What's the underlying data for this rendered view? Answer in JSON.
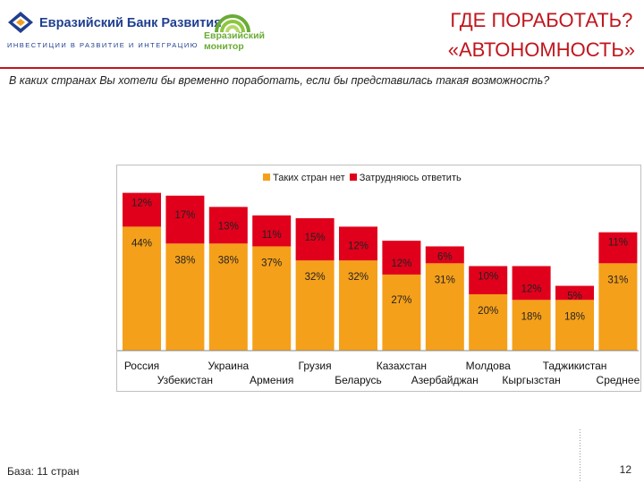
{
  "header": {
    "bank_name": "Евразийский Банк Развития",
    "bank_tagline": "ИНВЕСТИЦИИ В РАЗВИТИЕ И ИНТЕГРАЦИЮ",
    "monitor_line1": "Евразийский",
    "monitor_line2": "монитор",
    "title_line1": "ГДЕ ПОРАБОТАТЬ?",
    "title_line2": "«АВТОНОМНОСТЬ»"
  },
  "question": "В каких странах Вы хотели бы временно поработать, если бы представилась такая возможность?",
  "colors": {
    "accent": "#c0161d",
    "bar_orange": "#f5a01a",
    "bar_red": "#e0001b",
    "brand_blue": "#1f3f8f",
    "brand_green": "#6aab35"
  },
  "chart_data": {
    "type": "bar",
    "stacked": true,
    "categories": [
      "Россия",
      "Узбекистан",
      "Украина",
      "Армения",
      "Грузия",
      "Беларусь",
      "Казахстан",
      "Азербайджан",
      "Молдова",
      "Кыргызстан",
      "Таджикистан",
      "Среднее"
    ],
    "series": [
      {
        "name": "Таких стран нет",
        "color": "#f5a01a",
        "values": [
          44,
          38,
          38,
          37,
          32,
          32,
          27,
          31,
          20,
          18,
          18,
          31
        ]
      },
      {
        "name": "Затрудняюсь ответить",
        "color": "#e0001b",
        "values": [
          12,
          17,
          13,
          11,
          15,
          12,
          12,
          6,
          10,
          12,
          5,
          11
        ]
      }
    ],
    "value_labels": {
      "orange": [
        "44%",
        "38%",
        "38%",
        "37%",
        "32%",
        "32%",
        "27%",
        "31%",
        "20%",
        "18%",
        "18%",
        "31%"
      ],
      "red": [
        "12%",
        "17%",
        "13%",
        "11%",
        "15%",
        "12%",
        "12%",
        "6%",
        "10%",
        "12%",
        "5%",
        "11%"
      ]
    },
    "legend": [
      "Таких стран нет",
      "Затрудняюсь ответить"
    ],
    "legend_position": "top-center",
    "ylim": [
      0,
      60
    ],
    "xlabel": "",
    "ylabel": "",
    "grid": false
  },
  "footer": {
    "base": "База: 11 стран",
    "page_number": "12"
  }
}
